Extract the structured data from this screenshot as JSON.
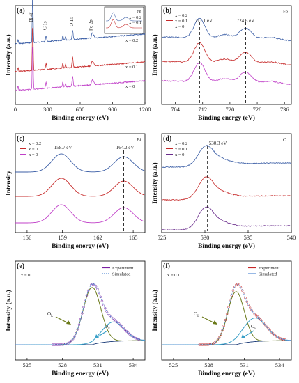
{
  "figure": {
    "panels": [
      {
        "id": "a",
        "label": "(a)",
        "xlabel": "Binding energy (eV)",
        "ylabel": "Intensity (a.u.)",
        "peak_labels": [
          "Bi 4f",
          "C 1s",
          "O 1s",
          "Fe 2p"
        ],
        "legend": [
          "x = 0.2",
          "x = 0.1",
          "x = 0"
        ],
        "inset": {
          "label": "Fe",
          "legend": [
            "x = 0.2",
            "x = 0.1"
          ]
        }
      },
      {
        "id": "b",
        "label": "(b)",
        "element": "Fe",
        "xlabel": "Binding energy (eV)",
        "ylabel": "Intensity (a.u.)",
        "legend": [
          "x = 0.2",
          "x = 0.1",
          "x = 0"
        ],
        "annotations": [
          "711.1 eV",
          "724.6 eV"
        ]
      },
      {
        "id": "c",
        "label": "(c)",
        "element": "Bi",
        "xlabel": "Binding energy (eV)",
        "ylabel": "Intensity",
        "legend": [
          "x = 0.2",
          "x = 0.1",
          "x = 0"
        ],
        "annotations": [
          "158.7 eV",
          "164.2 eV"
        ]
      },
      {
        "id": "d",
        "label": "(d)",
        "element": "O",
        "xlabel": "Binding energy (eV)",
        "ylabel": "Intensity (a.u.)",
        "legend": [
          "x = 0.2",
          "x = 0.1",
          "x = 0"
        ],
        "annotations": [
          "530.3 eV"
        ]
      },
      {
        "id": "e",
        "label": "(e)",
        "xlabel": "Binding energy (eV)",
        "ylabel": "Intensity (a.u.)",
        "tag": "x = 0",
        "legend": [
          "Experiment",
          "Simulated"
        ],
        "components": [
          "OL",
          "Ov"
        ]
      },
      {
        "id": "f",
        "label": "(f)",
        "xlabel": "Binding energy (eV)",
        "ylabel": "Intensity (a.u.)",
        "tag": "x = 0.1",
        "legend": [
          "Experiment",
          "Simulated"
        ],
        "components": [
          "OL",
          "Ov"
        ]
      }
    ]
  },
  "chart_data": [
    {
      "panel": "a",
      "type": "line",
      "xlim": [
        0,
        1200
      ],
      "xticks": [
        0,
        300,
        600,
        900,
        1200
      ],
      "series": [
        {
          "name": "x = 0.2",
          "color": "#3b5ea6"
        },
        {
          "name": "x = 0.1",
          "color": "#c62828"
        },
        {
          "name": "x = 0",
          "color": "#c040c8"
        }
      ],
      "peaks_eV": [
        159,
        285,
        530,
        711
      ]
    },
    {
      "panel": "b",
      "type": "line",
      "xlim": [
        700,
        738
      ],
      "xticks": [
        704,
        712,
        720,
        728,
        736
      ],
      "series": [
        {
          "name": "x = 0.2",
          "color": "#3b5ea6"
        },
        {
          "name": "x = 0.1",
          "color": "#c62828"
        },
        {
          "name": "x = 0",
          "color": "#c040c8"
        }
      ],
      "peaks_eV": [
        711.1,
        724.6
      ]
    },
    {
      "panel": "c",
      "type": "line",
      "xlim": [
        155,
        166
      ],
      "xticks": [
        156,
        159,
        162,
        165
      ],
      "series": [
        {
          "name": "x = 0.2",
          "color": "#3b5ea6"
        },
        {
          "name": "x = 0.1",
          "color": "#c62828"
        },
        {
          "name": "x = 0",
          "color": "#c040c8"
        }
      ],
      "peaks_eV": [
        158.7,
        164.2
      ]
    },
    {
      "panel": "d",
      "type": "line",
      "xlim": [
        525,
        540
      ],
      "xticks": [
        525,
        530,
        535,
        540
      ],
      "series": [
        {
          "name": "x = 0.2",
          "color": "#3b5ea6"
        },
        {
          "name": "x = 0.1",
          "color": "#c62828"
        },
        {
          "name": "x = 0",
          "color": "#6a2c8c"
        }
      ],
      "peaks_eV": [
        530.3
      ]
    },
    {
      "panel": "e",
      "type": "line",
      "xlim": [
        524,
        535
      ],
      "xticks": [
        525,
        528,
        531,
        534
      ],
      "series": [
        {
          "name": "Experiment",
          "color": "#7a1fa2"
        },
        {
          "name": "Simulated",
          "color": "#5b8fd6"
        }
      ],
      "components": [
        {
          "name": "OL",
          "center": 530.5,
          "color": "#6b7a1a"
        },
        {
          "name": "Ov",
          "center": 532.2,
          "color": "#3aa0c8"
        }
      ]
    },
    {
      "panel": "f",
      "type": "line",
      "xlim": [
        524,
        535
      ],
      "xticks": [
        525,
        528,
        531,
        534
      ],
      "series": [
        {
          "name": "Experiment",
          "color": "#c62828"
        },
        {
          "name": "Simulated",
          "color": "#5b8fd6"
        }
      ],
      "components": [
        {
          "name": "OL",
          "center": 530.3,
          "color": "#6b7a1a"
        },
        {
          "name": "Ov",
          "center": 531.8,
          "color": "#3aa0c8"
        }
      ]
    }
  ]
}
